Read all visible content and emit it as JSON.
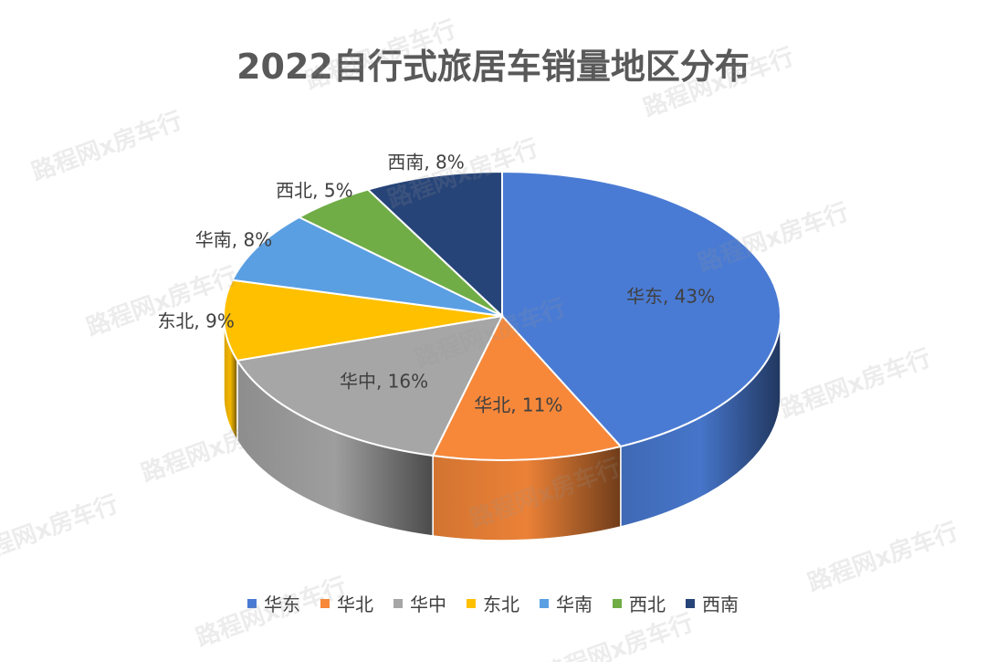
{
  "chart_data": {
    "type": "pie",
    "title": "2022自行式旅居车销量地区分布",
    "categories": [
      "华东",
      "华北",
      "华中",
      "东北",
      "华南",
      "西北",
      "西南"
    ],
    "values": [
      43,
      11,
      16,
      9,
      8,
      5,
      8
    ],
    "data_labels": [
      "华东, 43%",
      "华北, 11%",
      "华中, 16%",
      "东北, 9%",
      "华南, 8%",
      "西北, 5%",
      "西南, 8%"
    ],
    "colors": [
      "#4a7bd4",
      "#f7883a",
      "#a6a6a6",
      "#ffc000",
      "#5b9fe3",
      "#70ad47",
      "#264478"
    ],
    "legend_position": "bottom",
    "style": "3d"
  },
  "watermark_text": "路程网x房车行"
}
